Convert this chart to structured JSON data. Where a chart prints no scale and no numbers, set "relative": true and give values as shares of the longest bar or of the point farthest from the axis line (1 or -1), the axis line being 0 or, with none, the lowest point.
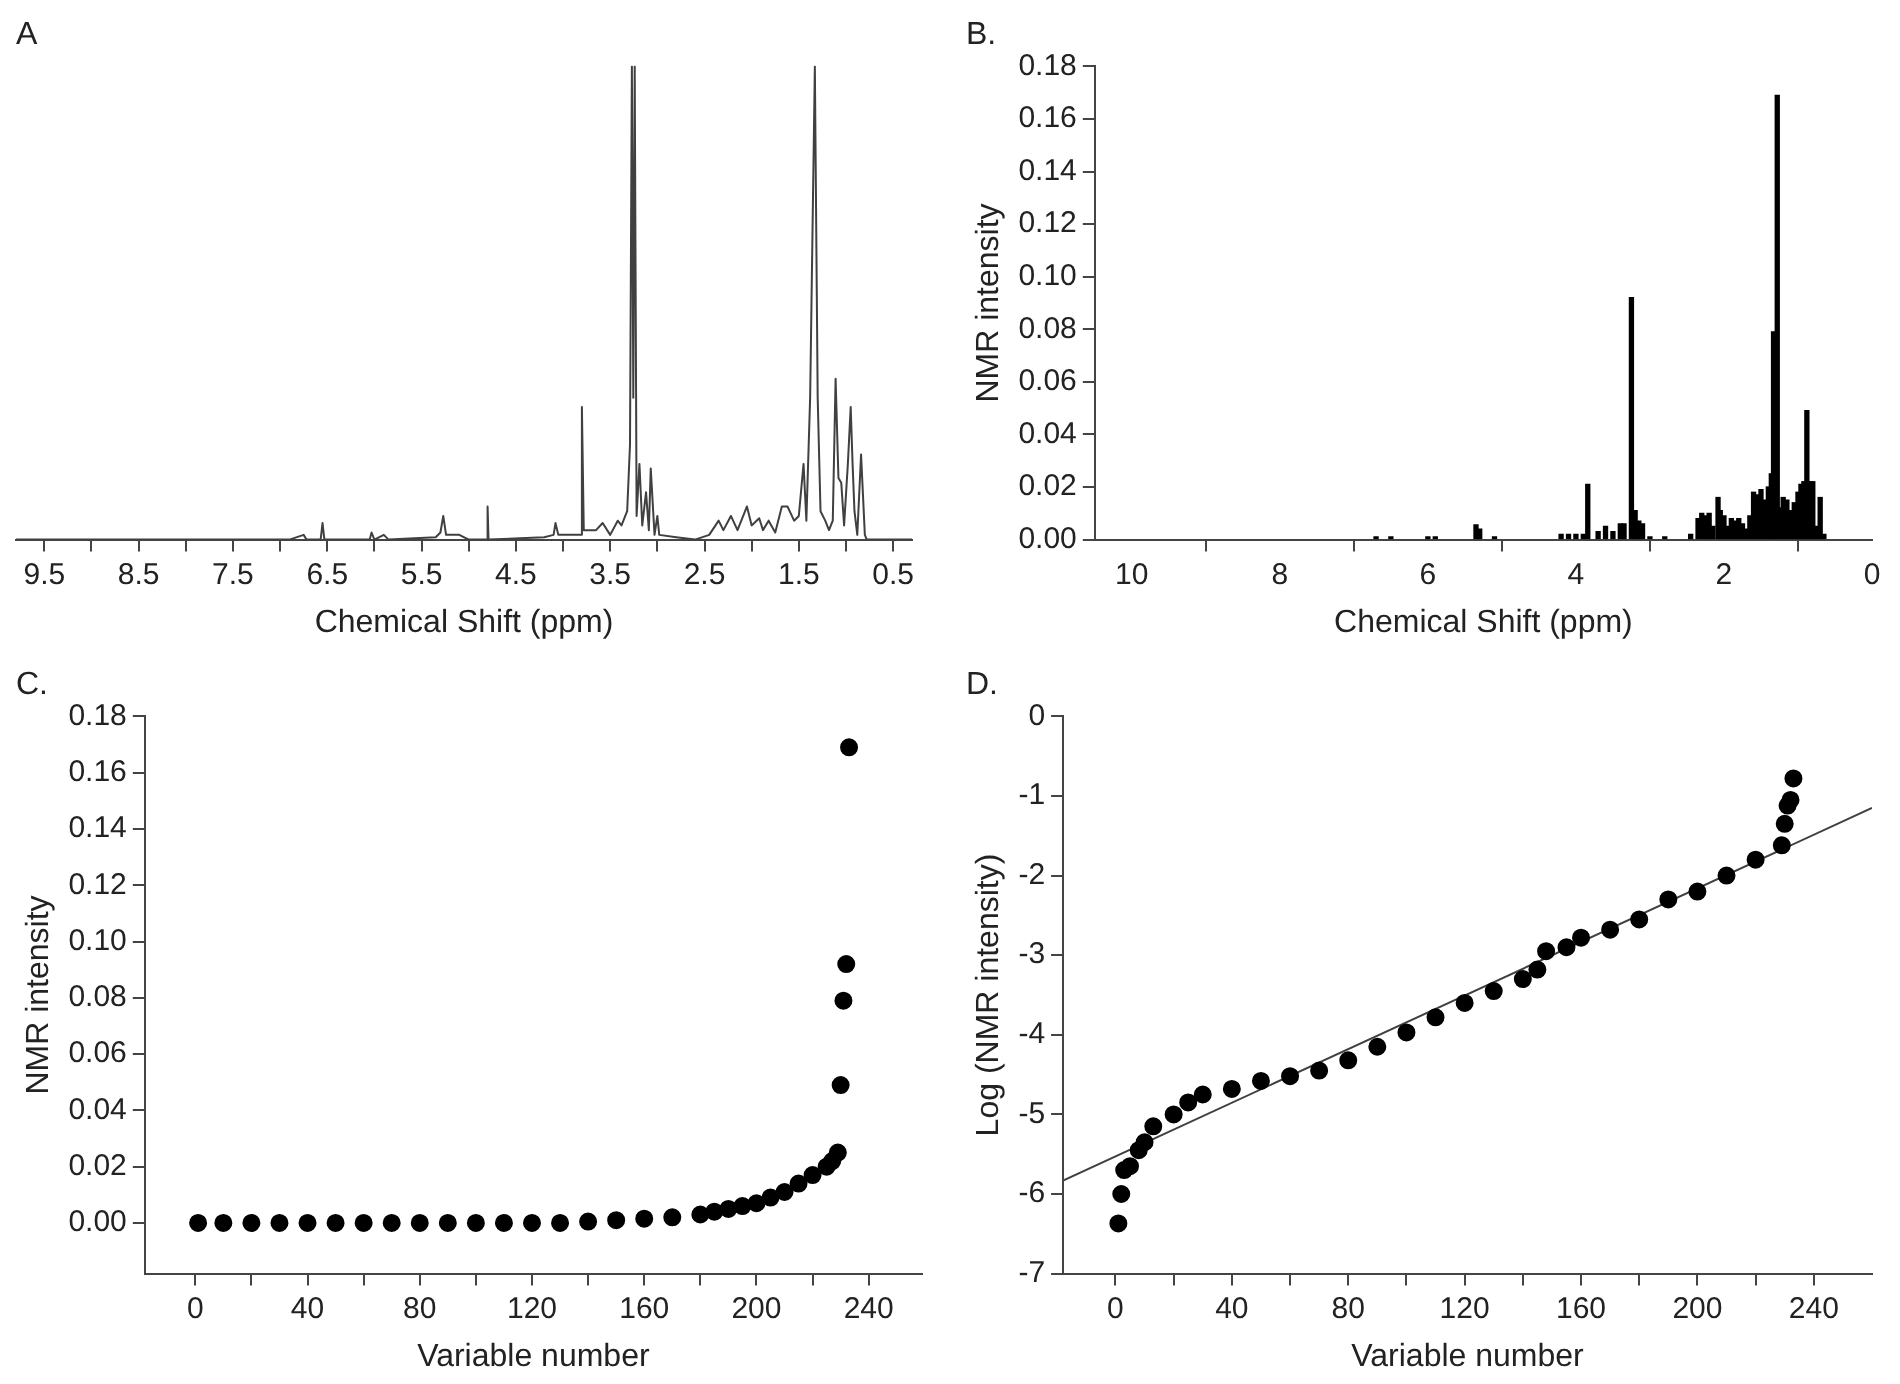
{
  "chart_data": [
    {
      "type": "line",
      "relative": true,
      "title": "A",
      "xlabel": "Chemical Shift (ppm)",
      "color": "#404040",
      "x": [
        9.8,
        6.9,
        6.75,
        6.72,
        6.57,
        6.55,
        6.53,
        6.05,
        6.03,
        6.0,
        5.9,
        5.85,
        5.35,
        5.3,
        5.27,
        5.24,
        5.1,
        5.0,
        4.81,
        4.8,
        4.79,
        4.2,
        4.1,
        4.08,
        4.05,
        3.82,
        3.8,
        3.78,
        3.65,
        3.58,
        3.5,
        3.42,
        3.38,
        3.32,
        3.29,
        3.27,
        3.255,
        3.24,
        3.22,
        3.19,
        3.16,
        3.12,
        3.09,
        3.07,
        3.03,
        3.0,
        2.98,
        2.8,
        2.6,
        2.45,
        2.35,
        2.3,
        2.22,
        2.15,
        2.05,
        2.0,
        1.92,
        1.88,
        1.82,
        1.75,
        1.68,
        1.62,
        1.55,
        1.5,
        1.45,
        1.42,
        1.38,
        1.33,
        1.3,
        1.27,
        1.22,
        1.18,
        1.14,
        1.11,
        1.08,
        1.05,
        1.02,
        0.98,
        0.95,
        0.93,
        0.91,
        0.88,
        0.84,
        0.8,
        0.78,
        0.76,
        0.7,
        0.3
      ],
      "values": [
        0,
        0,
        0.01,
        0,
        0,
        0.035,
        0,
        0,
        0.015,
        0,
        0.01,
        0,
        0.005,
        0.015,
        0.05,
        0.01,
        0.01,
        0,
        0,
        0.07,
        0,
        0.005,
        0.01,
        0.035,
        0.01,
        0.01,
        0.28,
        0.02,
        0.02,
        0.035,
        0.01,
        0.04,
        0.03,
        0.06,
        0.2,
        1,
        0.3,
        1,
        0.05,
        0.16,
        0.03,
        0.1,
        0.02,
        0.15,
        0.01,
        0.05,
        0.01,
        0.005,
        0,
        0.01,
        0.04,
        0.02,
        0.05,
        0.02,
        0.07,
        0.03,
        0.045,
        0.02,
        0.04,
        0.015,
        0.07,
        0.07,
        0.04,
        0.05,
        0.16,
        0.04,
        0.3,
        1,
        0.3,
        0.06,
        0.04,
        0.02,
        0.04,
        0.34,
        0.13,
        0.12,
        0.03,
        0.16,
        0.28,
        0.16,
        0.06,
        0.01,
        0.18,
        0.01,
        0,
        0,
        0,
        0
      ],
      "xlim": [
        9.8,
        0.3
      ],
      "xticks": [
        9.5,
        {
          "value": 9,
          "label": null
        },
        8.5,
        {
          "value": 8,
          "label": null
        },
        7.5,
        {
          "value": 7,
          "label": null
        },
        6.5,
        {
          "value": 6,
          "label": null
        },
        5.5,
        {
          "value": 5,
          "label": null
        },
        4.5,
        {
          "value": 4,
          "label": null
        },
        3.5,
        {
          "value": 3,
          "label": null
        },
        2.5,
        {
          "value": 2,
          "label": null
        },
        1.5,
        {
          "value": 1,
          "label": null
        },
        0.5
      ]
    },
    {
      "type": "bar",
      "title": "B.",
      "xlabel": "Chemical Shift (ppm)",
      "ylabel": "NMR intensity",
      "color": "#000000",
      "x": [
        6.7,
        6.5,
        6.0,
        5.9,
        5.35,
        5.3,
        5.1,
        4.2,
        4.1,
        4.0,
        3.9,
        3.84,
        3.7,
        3.6,
        3.5,
        3.4,
        3.35,
        3.25,
        3.2,
        3.15,
        3.1,
        3.0,
        2.8,
        2.45,
        2.35,
        2.3,
        2.25,
        2.2,
        2.15,
        2.08,
        2.05,
        2.0,
        1.95,
        1.9,
        1.85,
        1.8,
        1.75,
        1.7,
        1.65,
        1.6,
        1.55,
        1.5,
        1.45,
        1.4,
        1.36,
        1.33,
        1.28,
        1.24,
        1.2,
        1.15,
        1.1,
        1.05,
        1.0,
        0.96,
        0.92,
        0.88,
        0.84,
        0.8,
        0.75,
        0.7,
        0.65
      ],
      "values": [
        0.001,
        0.001,
        0.001,
        0.001,
        0.0056,
        0.004,
        0.001,
        0.002,
        0.002,
        0.002,
        0.002,
        0.021,
        0.003,
        0.005,
        0.003,
        0.006,
        0.006,
        0.092,
        0.011,
        0.007,
        0.006,
        0.001,
        0.001,
        0.002,
        0.008,
        0.01,
        0.009,
        0.01,
        0.005,
        0.016,
        0.011,
        0.009,
        0.005,
        0.008,
        0.007,
        0.008,
        0.006,
        0.004,
        0.009,
        0.018,
        0.017,
        0.019,
        0.015,
        0.02,
        0.025,
        0.079,
        0.169,
        0.012,
        0.016,
        0.015,
        0.011,
        0.014,
        0.018,
        0.021,
        0.022,
        0.049,
        0.022,
        0.022,
        0.005,
        0.016,
        0.002
      ],
      "xlim": [
        10.5,
        0
      ],
      "xticks": [
        10,
        8,
        6,
        4,
        2,
        0
      ],
      "ylim": [
        0,
        0.18
      ],
      "yticks": [
        {
          "value": 0,
          "label": "0.00"
        },
        {
          "value": 0.02,
          "label": "0.02"
        },
        {
          "value": 0.04,
          "label": "0.04"
        },
        {
          "value": 0.06,
          "label": "0.06"
        },
        {
          "value": 0.08,
          "label": "0.08"
        },
        {
          "value": 0.1,
          "label": "0.10"
        },
        {
          "value": 0.12,
          "label": "0.12"
        },
        {
          "value": 0.14,
          "label": "0.14"
        },
        {
          "value": 0.16,
          "label": "0.16"
        },
        {
          "value": 0.18,
          "label": "0.18"
        }
      ]
    },
    {
      "type": "scatter",
      "title": "C.",
      "xlabel": "Variable number",
      "ylabel": "NMR intensity",
      "color": "#000000",
      "marker": "circle",
      "x": [
        1,
        10,
        20,
        30,
        40,
        50,
        60,
        70,
        80,
        90,
        100,
        110,
        120,
        130,
        140,
        150,
        160,
        170,
        180,
        185,
        190,
        195,
        200,
        205,
        210,
        215,
        220,
        225,
        227,
        229,
        230,
        231,
        232,
        233
      ],
      "values": [
        0,
        0,
        0,
        0,
        0,
        0,
        0,
        0,
        0,
        0,
        0,
        0,
        0,
        0,
        0.0005,
        0.001,
        0.0015,
        0.002,
        0.003,
        0.004,
        0.005,
        0.006,
        0.007,
        0.009,
        0.011,
        0.014,
        0.017,
        0.02,
        0.022,
        0.025,
        0.049,
        0.079,
        0.092,
        0.169
      ],
      "xlim": [
        -18,
        259
      ],
      "xticks": [
        0,
        {
          "value": 20,
          "label": null
        },
        40,
        {
          "value": 60,
          "label": null
        },
        80,
        {
          "value": 100,
          "label": null
        },
        120,
        {
          "value": 140,
          "label": null
        },
        160,
        {
          "value": 180,
          "label": null
        },
        200,
        {
          "value": 220,
          "label": null
        },
        240
      ],
      "ylim": [
        -0.018,
        0.18
      ],
      "yticks": [
        {
          "value": 0,
          "label": "0.00"
        },
        {
          "value": 0.02,
          "label": "0.02"
        },
        {
          "value": 0.04,
          "label": "0.04"
        },
        {
          "value": 0.06,
          "label": "0.06"
        },
        {
          "value": 0.08,
          "label": "0.08"
        },
        {
          "value": 0.1,
          "label": "0.10"
        },
        {
          "value": 0.12,
          "label": "0.12"
        },
        {
          "value": 0.14,
          "label": "0.14"
        },
        {
          "value": 0.16,
          "label": "0.16"
        },
        {
          "value": 0.18,
          "label": "0.18"
        }
      ]
    },
    {
      "type": "scatter",
      "title": "D.",
      "xlabel": "Variable number",
      "ylabel": "Log (NMR intensity)",
      "series": [
        {
          "marker": "circle",
          "color": "#000000",
          "x": [
            1,
            2,
            3,
            5,
            8,
            10,
            13,
            20,
            25,
            30,
            40,
            50,
            60,
            70,
            80,
            90,
            100,
            110,
            120,
            130,
            140,
            145,
            148,
            155,
            160,
            170,
            180,
            190,
            200,
            210,
            220,
            229,
            230,
            231,
            232,
            233
          ],
          "values": [
            -6.37,
            -6.0,
            -5.7,
            -5.65,
            -5.45,
            -5.35,
            -5.15,
            -5.0,
            -4.85,
            -4.75,
            -4.68,
            -4.58,
            -4.52,
            -4.45,
            -4.32,
            -4.15,
            -3.97,
            -3.78,
            -3.6,
            -3.45,
            -3.3,
            -3.18,
            -2.95,
            -2.9,
            -2.78,
            -2.68,
            -2.55,
            -2.3,
            -2.2,
            -2.0,
            -1.8,
            -1.62,
            -1.35,
            -1.12,
            -1.05,
            -0.78
          ]
        },
        {
          "type": "line",
          "marker": "none",
          "color": "#404040",
          "x": [
            -18,
            260
          ],
          "values": [
            -5.83,
            -1.15
          ]
        }
      ],
      "xlim": [
        -18,
        260
      ],
      "xticks": [
        0,
        {
          "value": 20,
          "label": null
        },
        40,
        {
          "value": 60,
          "label": null
        },
        80,
        {
          "value": 100,
          "label": null
        },
        120,
        {
          "value": 140,
          "label": null
        },
        160,
        {
          "value": 180,
          "label": null
        },
        200,
        {
          "value": 220,
          "label": null
        },
        240
      ],
      "ylim": [
        -7,
        0
      ],
      "yticks": [
        -7,
        -6,
        -5,
        -4,
        -3,
        -2,
        -1,
        0
      ]
    }
  ]
}
